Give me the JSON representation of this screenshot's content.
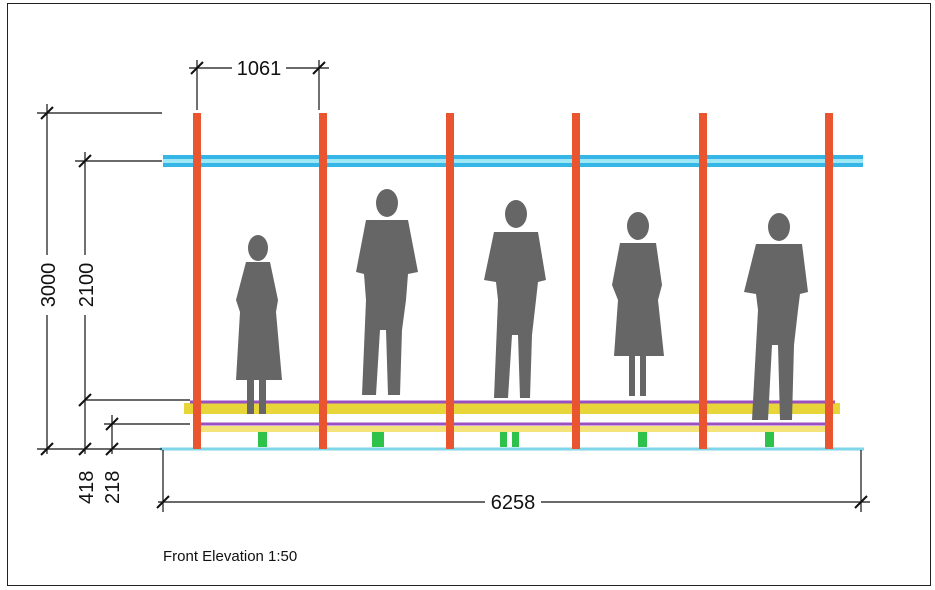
{
  "dimensions": {
    "bay_width": "1061",
    "total_height": "3000",
    "roof_height": "2100",
    "floor_height": "418",
    "step_height": "218",
    "total_width": "6258"
  },
  "caption": "Front Elevation 1:50",
  "colors": {
    "column": "#e8552e",
    "roof_beam": "#35b6e6",
    "floor_beam": "#e8d53a",
    "rail": "#9b4fc0",
    "base": "#2fc24a",
    "silhouette": "#666666"
  }
}
